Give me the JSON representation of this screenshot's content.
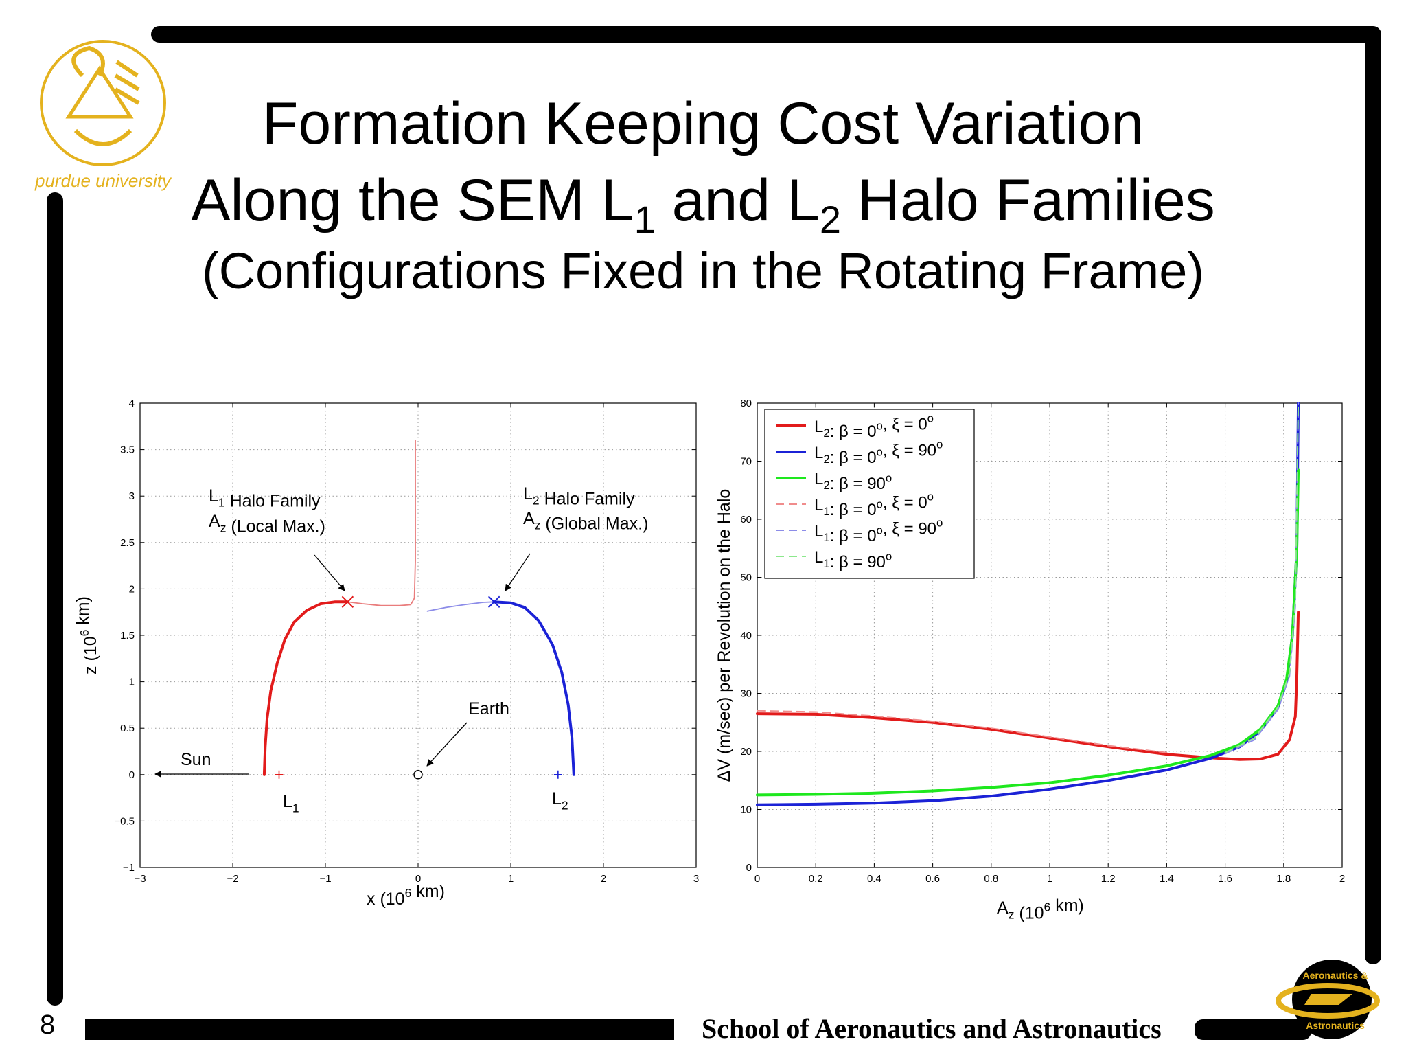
{
  "slide": {
    "title_line1": "Formation Keeping Cost Variation",
    "title_line2_parts": [
      "Along the SEM L",
      "1",
      " and L",
      "2",
      " Halo Families"
    ],
    "title_line3": "(Configurations Fixed in the Rotating Frame)",
    "page_number": "8",
    "footer": "School of Aeronautics and Astronautics",
    "logo_left_text": "purdue university",
    "logo_right_text_top": "Aeronautics &",
    "logo_right_text_bottom": "Astronautics",
    "colors": {
      "bars": "#000000",
      "gold": "#e4b21e"
    }
  },
  "chart_data": [
    {
      "type": "line",
      "xlabel": "x (10^6 km)",
      "ylabel": "z (10^6 km)",
      "xlim": [
        -3,
        3
      ],
      "ylim": [
        -1,
        4
      ],
      "xticks": [
        "−3",
        "−2",
        "−1",
        "0",
        "1",
        "2",
        "3"
      ],
      "yticks": [
        "−1",
        "−0.5",
        "0",
        "0.5",
        "1",
        "1.5",
        "2",
        "2.5",
        "3",
        "3.5",
        "4"
      ],
      "grid": true,
      "series": [
        {
          "color": "#e21b1b",
          "style": "thick",
          "points": [
            [
              -1.66,
              0
            ],
            [
              -1.65,
              0.3
            ],
            [
              -1.63,
              0.6
            ],
            [
              -1.59,
              0.9
            ],
            [
              -1.52,
              1.2
            ],
            [
              -1.44,
              1.45
            ],
            [
              -1.34,
              1.64
            ],
            [
              -1.2,
              1.77
            ],
            [
              -1.05,
              1.84
            ],
            [
              -0.9,
              1.86
            ],
            [
              -0.76,
              1.86
            ]
          ]
        },
        {
          "color": "#e97c7c",
          "style": "thin",
          "points": [
            [
              -0.76,
              1.86
            ],
            [
              -0.6,
              1.84
            ],
            [
              -0.4,
              1.82
            ],
            [
              -0.2,
              1.82
            ],
            [
              -0.08,
              1.83
            ],
            [
              -0.04,
              1.9
            ],
            [
              -0.03,
              2.3
            ],
            [
              -0.03,
              3.0
            ],
            [
              -0.03,
              3.6
            ]
          ]
        },
        {
          "color": "#8c8ce8",
          "style": "thin",
          "points": [
            [
              0.1,
              1.76
            ],
            [
              0.3,
              1.8
            ],
            [
              0.5,
              1.83
            ],
            [
              0.7,
              1.855
            ],
            [
              0.82,
              1.86
            ]
          ]
        },
        {
          "color": "#1b22d6",
          "style": "thick",
          "points": [
            [
              0.82,
              1.86
            ],
            [
              1.0,
              1.85
            ],
            [
              1.15,
              1.8
            ],
            [
              1.3,
              1.66
            ],
            [
              1.45,
              1.4
            ],
            [
              1.55,
              1.1
            ],
            [
              1.62,
              0.75
            ],
            [
              1.66,
              0.4
            ],
            [
              1.68,
              0
            ]
          ]
        }
      ],
      "markers": [
        {
          "symbol": "x",
          "x": -0.76,
          "y": 1.86,
          "color": "#e21b1b"
        },
        {
          "symbol": "x",
          "x": 0.82,
          "y": 1.86,
          "color": "#1b22d6"
        },
        {
          "symbol": "+",
          "x": -1.5,
          "y": 0,
          "color": "#e21b1b"
        },
        {
          "symbol": "+",
          "x": 1.51,
          "y": 0,
          "color": "#1b22d6"
        },
        {
          "symbol": "o",
          "x": 0,
          "y": 0,
          "color": "#000000"
        }
      ],
      "annotations": {
        "l1_family": {
          "line1": "L",
          "sub1": "1",
          "rest1": " Halo Family",
          "line2": "A",
          "sub2": "z",
          "rest2": " (Local Max.)"
        },
        "l2_family": {
          "line1": "L",
          "sub1": "2",
          "rest1": " Halo Family",
          "line2": "A",
          "sub2": "z",
          "rest2": " (Global Max.)"
        },
        "earth": "Earth",
        "sun": "Sun",
        "l1": {
          "main": "L",
          "sub": "1"
        },
        "l2": {
          "main": "L",
          "sub": "2"
        }
      }
    },
    {
      "type": "line",
      "xlabel": "A_z (10^6 km)",
      "ylabel": "ΔV (m/sec) per Revolution on the Halo",
      "xlim": [
        0,
        2
      ],
      "ylim": [
        0,
        80
      ],
      "xticks": [
        "0",
        "0.2",
        "0.4",
        "0.6",
        "0.8",
        "1",
        "1.2",
        "1.4",
        "1.6",
        "1.8",
        "2"
      ],
      "yticks": [
        "0",
        "10",
        "20",
        "30",
        "40",
        "50",
        "60",
        "70",
        "80"
      ],
      "grid": true,
      "legend_position": "top-left",
      "series": [
        {
          "name": "L2: β = 0°, ξ = 0°",
          "color": "#e21b1b",
          "style": "solid",
          "points": [
            [
              0,
              26.5
            ],
            [
              0.2,
              26.4
            ],
            [
              0.4,
              25.8
            ],
            [
              0.6,
              25
            ],
            [
              0.8,
              23.8
            ],
            [
              1.0,
              22.3
            ],
            [
              1.2,
              20.8
            ],
            [
              1.4,
              19.5
            ],
            [
              1.55,
              18.9
            ],
            [
              1.65,
              18.6
            ],
            [
              1.72,
              18.7
            ],
            [
              1.78,
              19.5
            ],
            [
              1.82,
              22
            ],
            [
              1.84,
              26
            ],
            [
              1.845,
              33
            ],
            [
              1.85,
              44
            ]
          ]
        },
        {
          "name": "L2: β = 0°, ξ = 90°",
          "color": "#1b22d6",
          "style": "solid",
          "points": [
            [
              0,
              10.8
            ],
            [
              0.2,
              10.9
            ],
            [
              0.4,
              11.1
            ],
            [
              0.6,
              11.5
            ],
            [
              0.8,
              12.3
            ],
            [
              1.0,
              13.5
            ],
            [
              1.2,
              15.0
            ],
            [
              1.4,
              16.8
            ],
            [
              1.55,
              18.8
            ],
            [
              1.65,
              20.8
            ],
            [
              1.72,
              23.5
            ],
            [
              1.78,
              27.5
            ],
            [
              1.81,
              32
            ],
            [
              1.83,
              40
            ],
            [
              1.845,
              55
            ],
            [
              1.85,
              80
            ]
          ]
        },
        {
          "name": "L2: β = 90°",
          "color": "#1ee81e",
          "style": "solid",
          "points": [
            [
              0,
              12.5
            ],
            [
              0.2,
              12.6
            ],
            [
              0.4,
              12.8
            ],
            [
              0.6,
              13.2
            ],
            [
              0.8,
              13.8
            ],
            [
              1.0,
              14.6
            ],
            [
              1.2,
              15.9
            ],
            [
              1.4,
              17.5
            ],
            [
              1.55,
              19.3
            ],
            [
              1.65,
              21.2
            ],
            [
              1.72,
              23.8
            ],
            [
              1.78,
              27.8
            ],
            [
              1.81,
              32.5
            ],
            [
              1.83,
              40
            ],
            [
              1.845,
              55
            ],
            [
              1.85,
              68.5
            ]
          ]
        },
        {
          "name": "L1: β = 0°, ξ = 0°",
          "color": "#f08c8c",
          "style": "dashed",
          "points": [
            [
              0,
              27.0
            ],
            [
              0.2,
              26.8
            ],
            [
              0.4,
              26.1
            ],
            [
              0.6,
              25.2
            ],
            [
              0.8,
              24.0
            ],
            [
              1.0,
              22.5
            ],
            [
              1.2,
              21.0
            ],
            [
              1.4,
              19.8
            ]
          ]
        },
        {
          "name": "L1: β = 0°, ξ = 90°",
          "color": "#8c8ce8",
          "style": "dashed",
          "points": [
            [
              1.6,
              19.6
            ],
            [
              1.7,
              22.0
            ],
            [
              1.78,
              27.2
            ],
            [
              1.82,
              33
            ],
            [
              1.84,
              45
            ],
            [
              1.85,
              80
            ]
          ]
        },
        {
          "name": "L1: β = 90°",
          "color": "#8ce88c",
          "style": "dashed",
          "points": [
            [
              1.6,
              19.8
            ],
            [
              1.7,
              22.3
            ],
            [
              1.78,
              27.6
            ],
            [
              1.82,
              33.5
            ],
            [
              1.84,
              46
            ],
            [
              1.85,
              80
            ]
          ]
        }
      ],
      "legend": [
        {
          "main": "L",
          "sub": "2",
          "rest": ": β = 0",
          "deg1": "o",
          "mid": ", ξ = 0",
          "deg2": "o"
        },
        {
          "main": "L",
          "sub": "2",
          "rest": ": β = 0",
          "deg1": "o",
          "mid": ", ξ = 90",
          "deg2": "o"
        },
        {
          "main": "L",
          "sub": "2",
          "rest": ": β = 90",
          "deg1": "o",
          "mid": "",
          "deg2": ""
        },
        {
          "main": "L",
          "sub": "1",
          "rest": ": β = 0",
          "deg1": "o",
          "mid": ", ξ = 0",
          "deg2": "o"
        },
        {
          "main": "L",
          "sub": "1",
          "rest": ": β = 0",
          "deg1": "o",
          "mid": ", ξ = 90",
          "deg2": "o"
        },
        {
          "main": "L",
          "sub": "1",
          "rest": ": β = 90",
          "deg1": "o",
          "mid": "",
          "deg2": ""
        }
      ]
    }
  ]
}
